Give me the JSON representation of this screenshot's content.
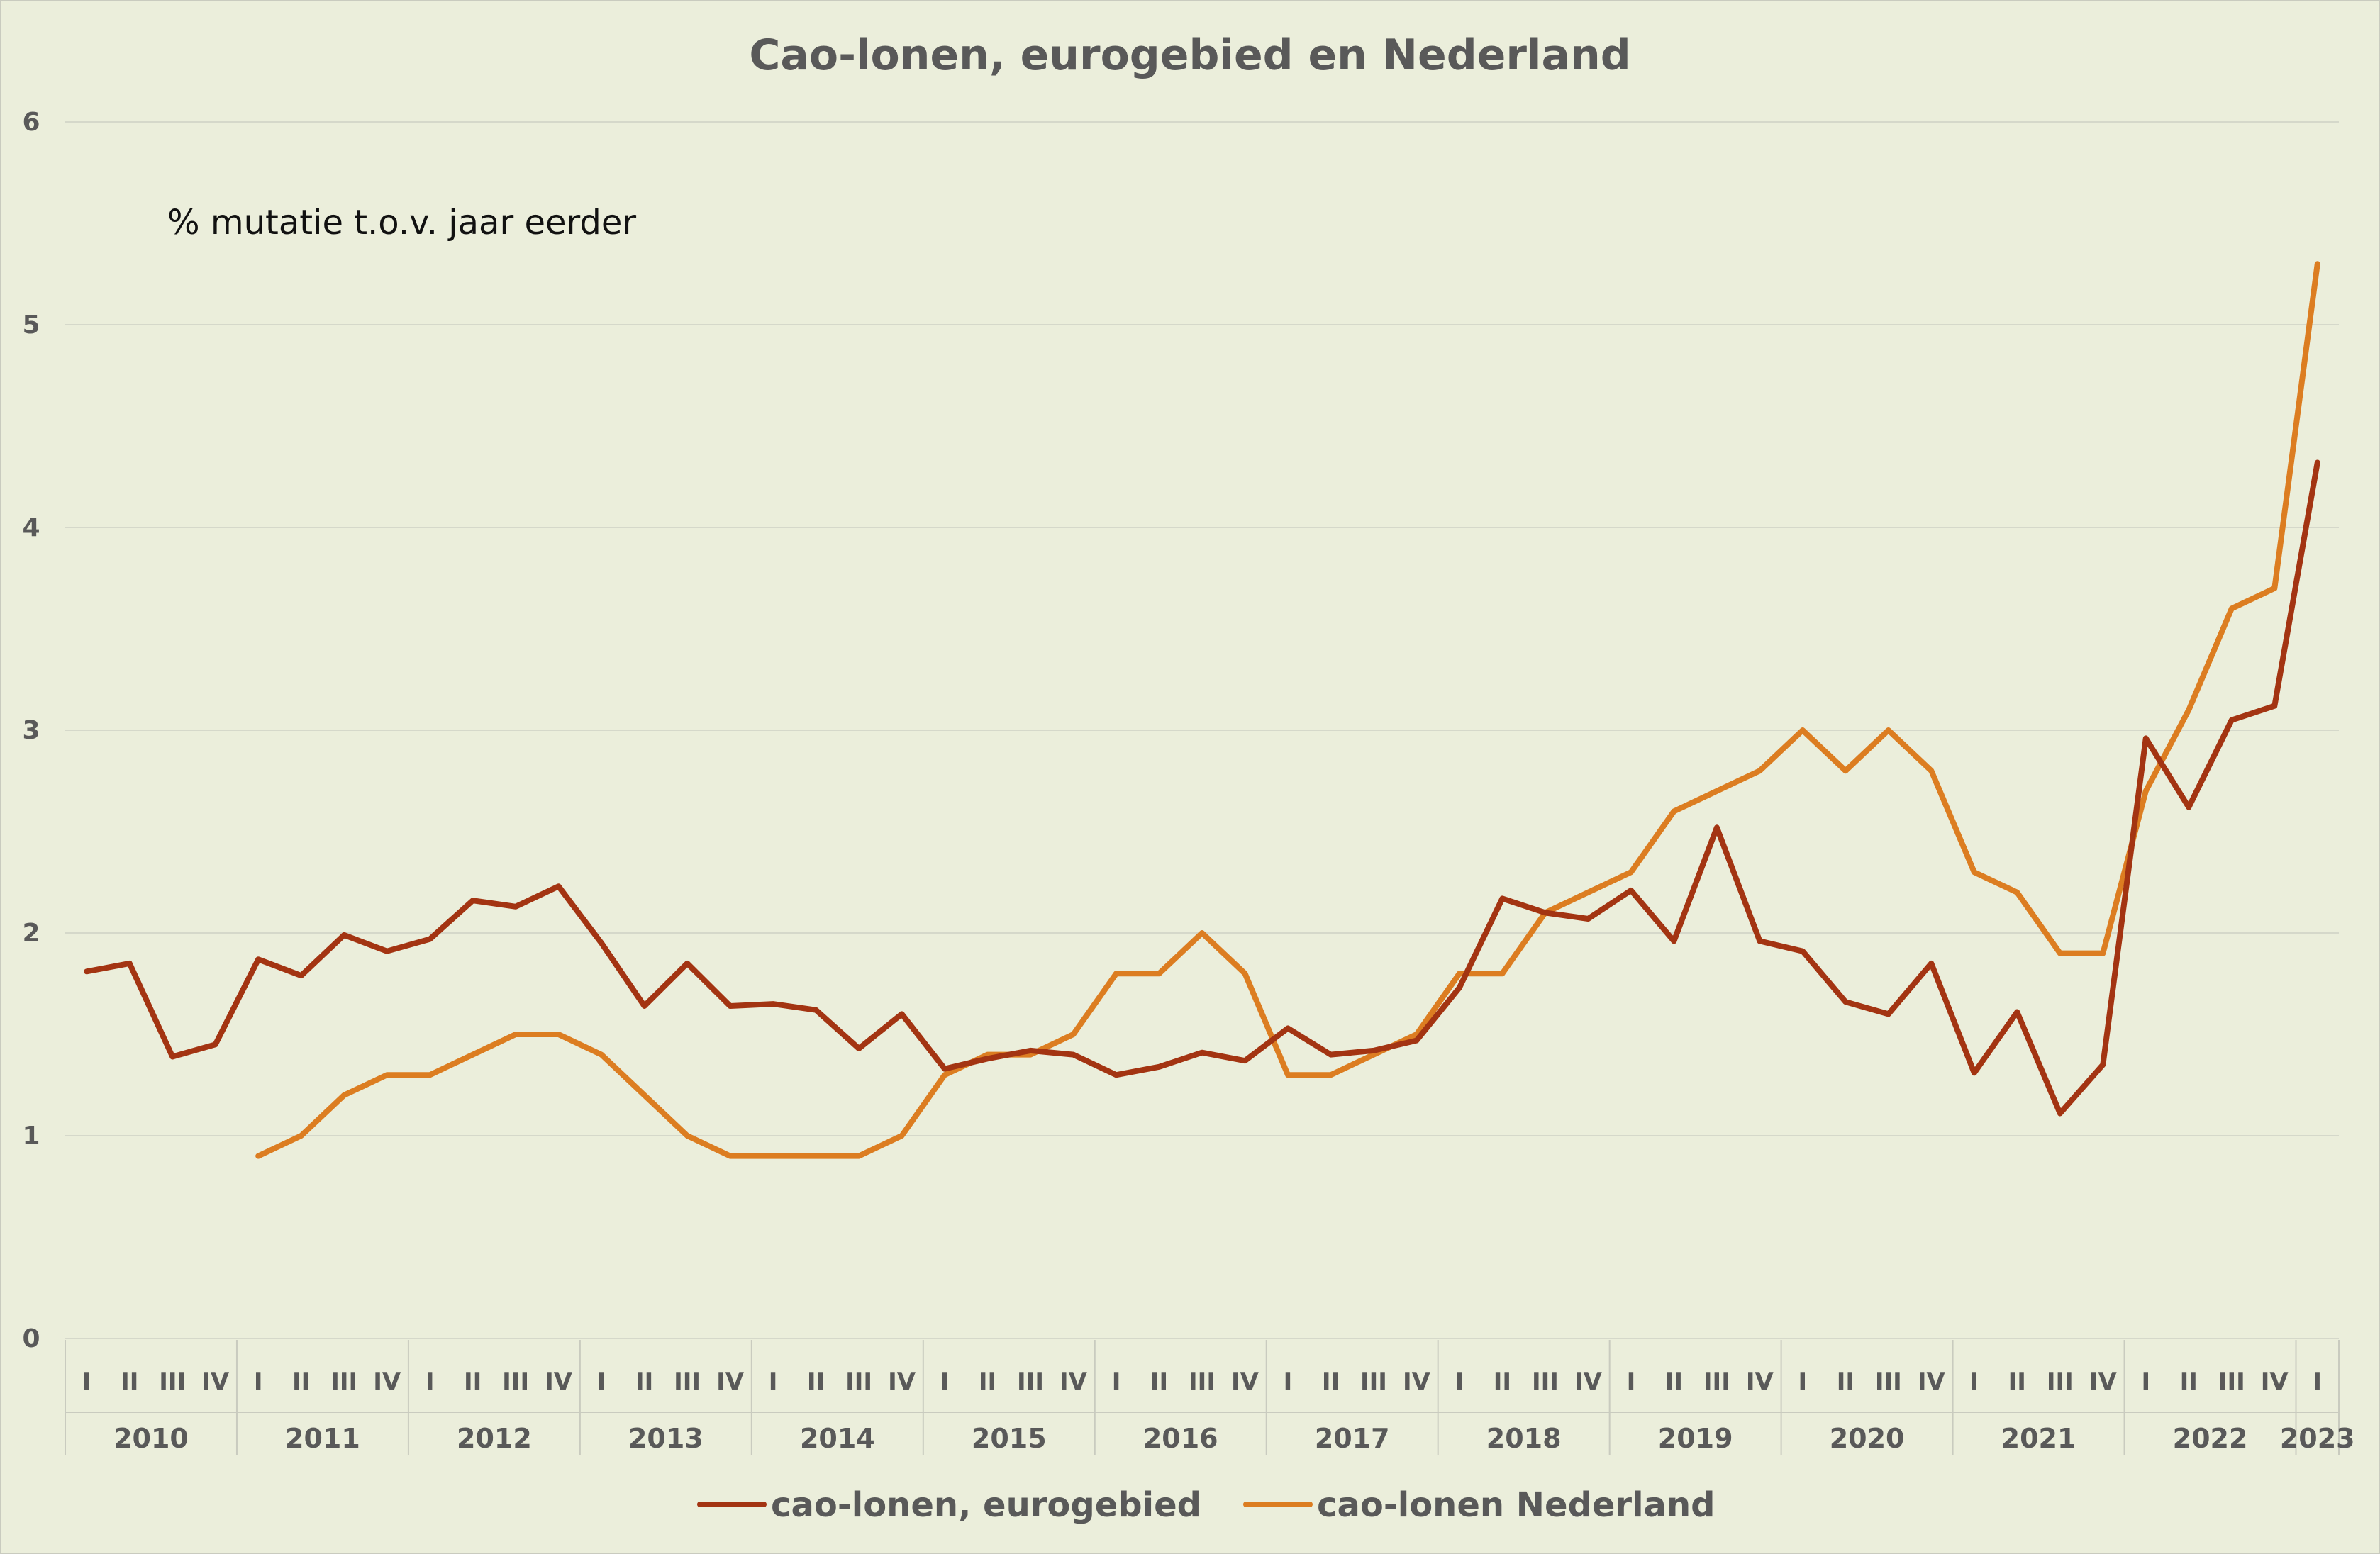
{
  "chart_data": {
    "type": "line",
    "title": "Cao-lonen, eurogebied en Nederland",
    "annotation": "% mutatie t.o.v. jaar eerder",
    "xlabel": "",
    "ylabel": "",
    "ylim": [
      0,
      6
    ],
    "yticks": [
      "0",
      "1",
      "2",
      "3",
      "4",
      "5",
      "6"
    ],
    "grid": true,
    "legend_position": "bottom",
    "quarter_labels": [
      "I",
      "II",
      "III",
      "IV"
    ],
    "years": [
      "2010",
      "2011",
      "2012",
      "2013",
      "2014",
      "2015",
      "2016",
      "2017",
      "2018",
      "2019",
      "2020",
      "2021",
      "2022",
      "2023"
    ],
    "categories": [
      "2010 I",
      "2010 II",
      "2010 III",
      "2010 IV",
      "2011 I",
      "2011 II",
      "2011 III",
      "2011 IV",
      "2012 I",
      "2012 II",
      "2012 III",
      "2012 IV",
      "2013 I",
      "2013 II",
      "2013 III",
      "2013 IV",
      "2014 I",
      "2014 II",
      "2014 III",
      "2014 IV",
      "2015 I",
      "2015 II",
      "2015 III",
      "2015 IV",
      "2016 I",
      "2016 II",
      "2016 III",
      "2016 IV",
      "2017 I",
      "2017 II",
      "2017 III",
      "2017 IV",
      "2018 I",
      "2018 II",
      "2018 III",
      "2018 IV",
      "2019 I",
      "2019 II",
      "2019 III",
      "2019 IV",
      "2020 I",
      "2020 II",
      "2020 III",
      "2020 IV",
      "2021 I",
      "2021 II",
      "2021 III",
      "2021 IV",
      "2022 I",
      "2022 II",
      "2022 III",
      "2022 IV",
      "2023 I"
    ],
    "series": [
      {
        "name": "cao-lonen, eurogebied",
        "color": "#a33412",
        "values": [
          1.81,
          1.85,
          1.39,
          1.45,
          1.87,
          1.79,
          1.99,
          1.91,
          1.97,
          2.16,
          2.13,
          2.23,
          1.95,
          1.64,
          1.85,
          1.64,
          1.65,
          1.62,
          1.43,
          1.6,
          1.33,
          1.38,
          1.42,
          1.4,
          1.3,
          1.34,
          1.41,
          1.37,
          1.53,
          1.4,
          1.42,
          1.47,
          1.73,
          2.17,
          2.1,
          2.07,
          2.21,
          1.96,
          2.52,
          1.96,
          1.91,
          1.66,
          1.6,
          1.85,
          1.31,
          1.61,
          1.11,
          1.35,
          2.96,
          2.62,
          3.05,
          3.12,
          4.32
        ]
      },
      {
        "name": "cao-lonen Nederland",
        "color": "#dc7d21",
        "values": [
          null,
          null,
          null,
          null,
          0.9,
          1.0,
          1.2,
          1.3,
          1.3,
          1.4,
          1.5,
          1.5,
          1.4,
          1.2,
          1.0,
          0.9,
          0.9,
          0.9,
          0.9,
          1.0,
          1.3,
          1.4,
          1.4,
          1.5,
          1.8,
          1.8,
          2.0,
          1.8,
          1.3,
          1.3,
          1.4,
          1.5,
          1.8,
          1.8,
          2.1,
          2.2,
          2.3,
          2.6,
          2.7,
          2.8,
          3.0,
          2.8,
          3.0,
          2.8,
          2.3,
          2.2,
          1.9,
          1.9,
          2.7,
          3.1,
          3.6,
          3.7,
          5.3
        ]
      }
    ]
  }
}
